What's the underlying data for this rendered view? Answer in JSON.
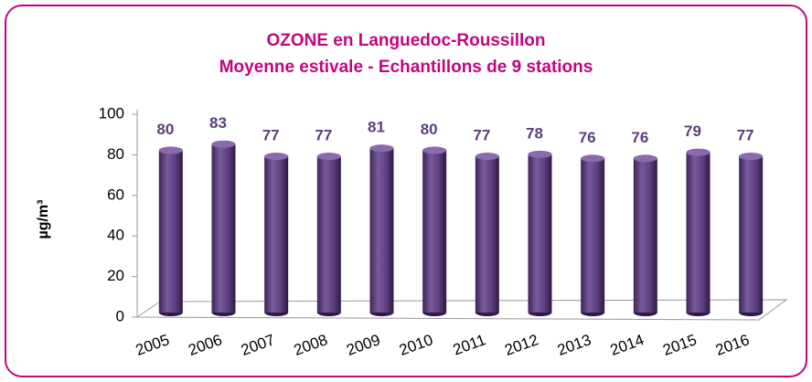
{
  "chart_data": {
    "type": "bar",
    "title": "OZONE en Languedoc-Roussillon",
    "subtitle": "Moyenne estivale - Echantillons de 9 stations",
    "y_label": "µg/m³",
    "categories": [
      "2005",
      "2006",
      "2007",
      "2008",
      "2009",
      "2010",
      "2011",
      "2012",
      "2013",
      "2014",
      "2015",
      "2016"
    ],
    "values": [
      80,
      83,
      77,
      77,
      81,
      80,
      77,
      78,
      76,
      76,
      79,
      77
    ],
    "color": "#5c3d7e",
    "ylim": [
      0,
      100
    ],
    "yticks": [
      0,
      20,
      40,
      60,
      80,
      100
    ],
    "grid": false
  }
}
